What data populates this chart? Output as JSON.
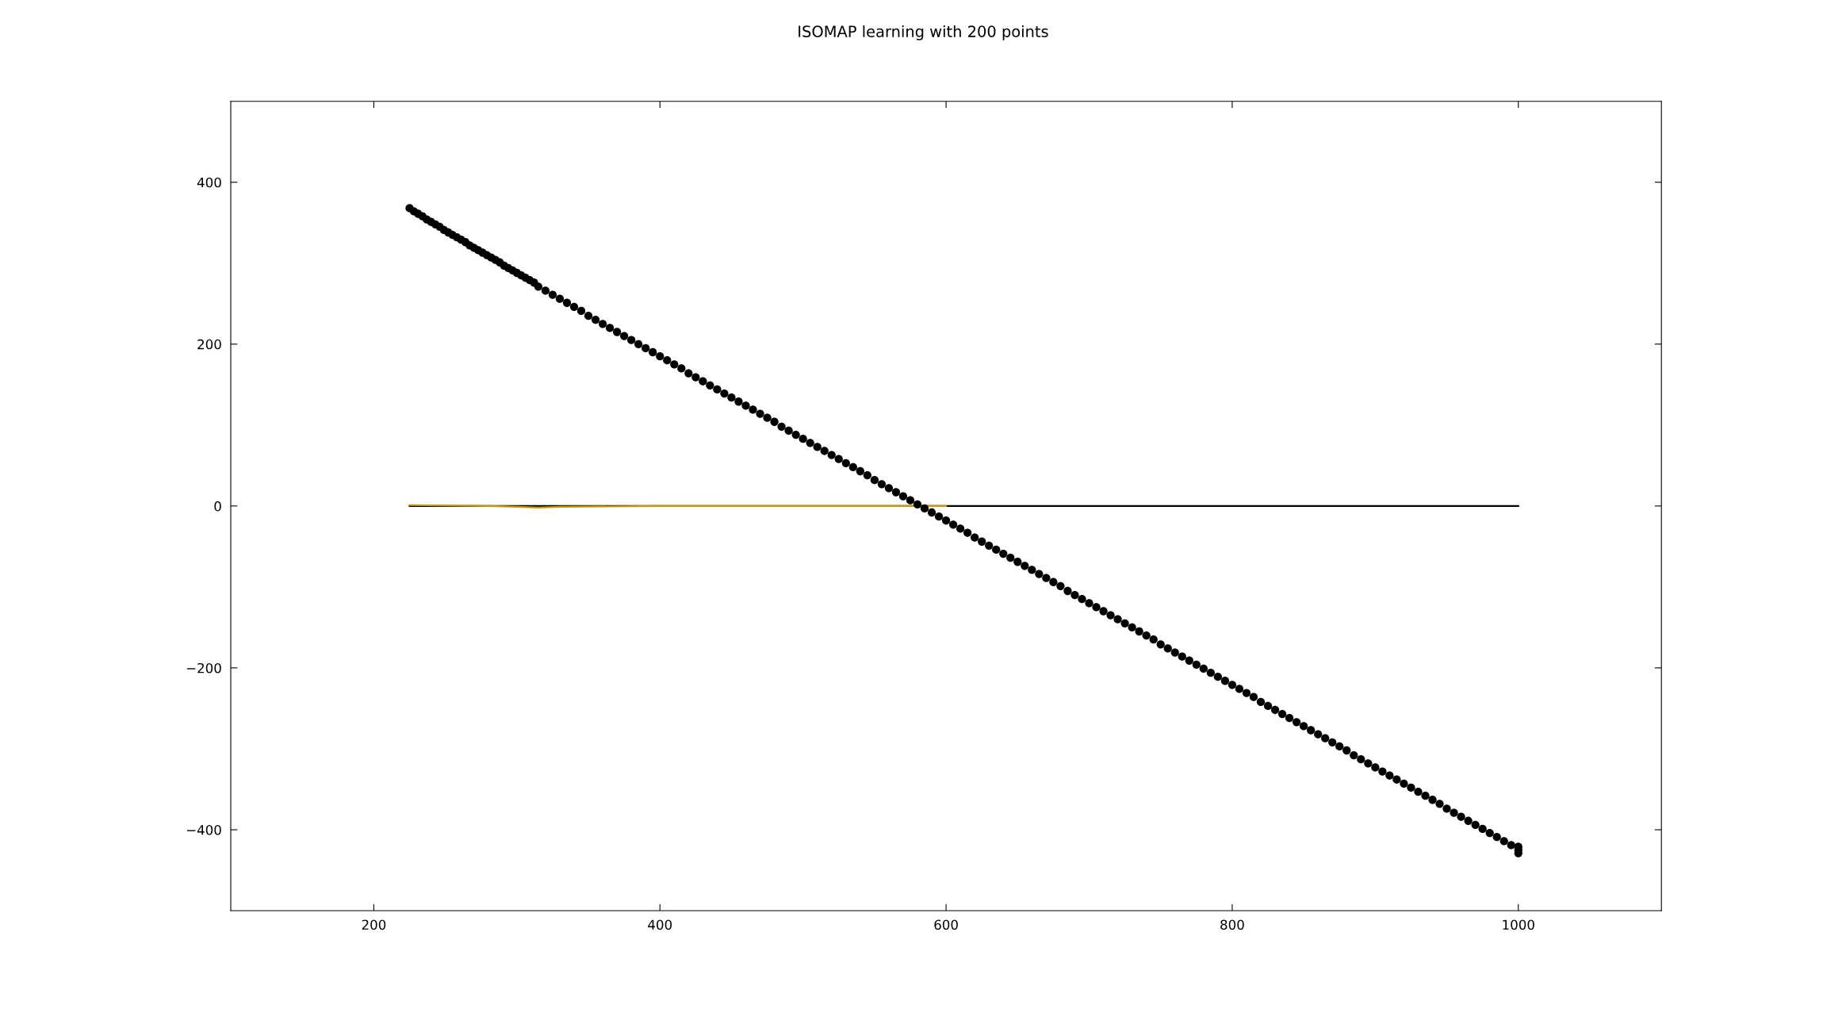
{
  "chart_data": {
    "type": "scatter",
    "title": "ISOMAP learning with 200 points",
    "series": [
      {
        "type": "line",
        "color": "#000000",
        "x": [
          225,
          1000
        ],
        "values": [
          0,
          0
        ],
        "line_style": "solid"
      },
      {
        "type": "line",
        "color": "#c89a00",
        "x": [
          225,
          280,
          300,
          315,
          330,
          400,
          600
        ],
        "values": [
          1,
          0,
          -1,
          -2,
          -1,
          0,
          0
        ],
        "line_style": "solid"
      },
      {
        "color": "#000000",
        "marker": "circle",
        "x": [
          225,
          228,
          231,
          234,
          237,
          240,
          243,
          246,
          249,
          252,
          255,
          258,
          261,
          264,
          267,
          270,
          273,
          276,
          279,
          282,
          285,
          288,
          291,
          294,
          297,
          300,
          303,
          306,
          309,
          312,
          315,
          320,
          325,
          330,
          335,
          340,
          345,
          350,
          355,
          360,
          365,
          370,
          375,
          380,
          385,
          390,
          395,
          400,
          405,
          410,
          415,
          420,
          425,
          430,
          435,
          440,
          445,
          450,
          455,
          460,
          465,
          470,
          475,
          480,
          485,
          490,
          495,
          500,
          505,
          510,
          515,
          520,
          525,
          530,
          535,
          540,
          545,
          550,
          555,
          560,
          565,
          570,
          575,
          580,
          585,
          590,
          595,
          600,
          605,
          610,
          615,
          620,
          625,
          630,
          635,
          640,
          645,
          650,
          655,
          660,
          665,
          670,
          675,
          680,
          685,
          690,
          695,
          700,
          705,
          710,
          715,
          720,
          725,
          730,
          735,
          740,
          745,
          750,
          755,
          760,
          765,
          770,
          775,
          780,
          785,
          790,
          795,
          800,
          805,
          810,
          815,
          820,
          825,
          830,
          835,
          840,
          845,
          850,
          855,
          860,
          865,
          870,
          875,
          880,
          885,
          890,
          895,
          900,
          905,
          910,
          915,
          920,
          925,
          930,
          935,
          940,
          945,
          950,
          955,
          960,
          965,
          970,
          975,
          980,
          985,
          990,
          995,
          1000,
          1000,
          1000
        ],
        "values": [
          368,
          364,
          361,
          358,
          354,
          351,
          348,
          345,
          341,
          338,
          335,
          332,
          329,
          326,
          322,
          319,
          316,
          313,
          310,
          307,
          304,
          301,
          297,
          294,
          291,
          288,
          285,
          282,
          279,
          276,
          271,
          266,
          261,
          256,
          251,
          246,
          241,
          235,
          230,
          225,
          220,
          215,
          210,
          205,
          200,
          195,
          190,
          185,
          180,
          175,
          170,
          164,
          159,
          154,
          149,
          144,
          139,
          134,
          129,
          124,
          119,
          114,
          109,
          104,
          98,
          93,
          88,
          83,
          78,
          73,
          68,
          63,
          58,
          53,
          48,
          43,
          38,
          32,
          27,
          22,
          17,
          12,
          7,
          2,
          -3,
          -8,
          -13,
          -18,
          -23,
          -28,
          -33,
          -39,
          -44,
          -49,
          -54,
          -59,
          -64,
          -69,
          -74,
          -79,
          -84,
          -89,
          -94,
          -99,
          -105,
          -110,
          -115,
          -120,
          -125,
          -130,
          -135,
          -140,
          -145,
          -150,
          -155,
          -160,
          -165,
          -171,
          -176,
          -181,
          -186,
          -191,
          -196,
          -201,
          -206,
          -211,
          -216,
          -221,
          -226,
          -231,
          -236,
          -242,
          -247,
          -252,
          -257,
          -262,
          -267,
          -272,
          -277,
          -282,
          -287,
          -292,
          -297,
          -302,
          -308,
          -313,
          -318,
          -323,
          -328,
          -333,
          -338,
          -343,
          -348,
          -353,
          -358,
          -363,
          -368,
          -374,
          -379,
          -384,
          -389,
          -394,
          -399,
          -404,
          -409,
          -414,
          -419,
          -421,
          -425,
          -429
        ]
      }
    ],
    "xlim": [
      100,
      1100
    ],
    "ylim": [
      -500,
      500
    ],
    "xticks": [
      200,
      400,
      600,
      800,
      1000
    ],
    "yticks": [
      {
        "value": -400,
        "label": "−400"
      },
      {
        "value": -200,
        "label": "−200"
      },
      0,
      200,
      400
    ],
    "grid": false,
    "legend": false
  }
}
